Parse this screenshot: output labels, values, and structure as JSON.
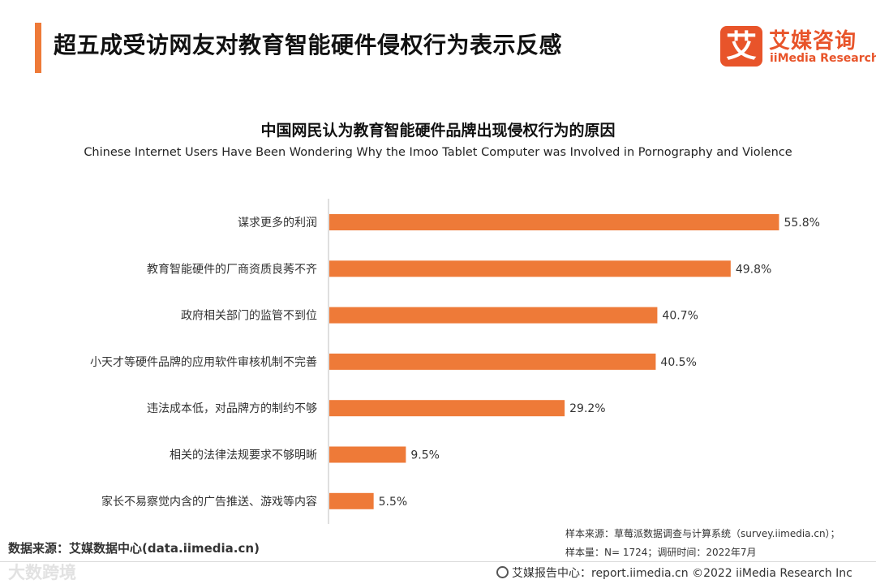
{
  "page": {
    "title": "超五成受访网友对教育智能硬件侵权行为表示反感"
  },
  "logo": {
    "mark": "艾",
    "name_cn": "艾媒咨询",
    "name_en": "iiMedia Research"
  },
  "chart_data": {
    "type": "bar",
    "orientation": "horizontal",
    "title": "中国网民认为教育智能硬件品牌出现侵权行为的原因",
    "subtitle": "Chinese Internet Users Have Been Wondering Why the Imoo Tablet Computer  was Involved in Pornography and Violence",
    "categories": [
      "谋求更多的利润",
      "教育智能硬件的厂商资质良莠不齐",
      "政府相关部门的监管不到位",
      "小天才等硬件品牌的应用软件审核机制不完善",
      "违法成本低，对品牌方的制约不够",
      "相关的法律法规要求不够明晰",
      "家长不易察觉内含的广告推送、游戏等内容"
    ],
    "values": [
      55.8,
      49.8,
      40.7,
      40.5,
      29.2,
      9.5,
      5.5
    ],
    "value_labels": [
      "55.8%",
      "49.8%",
      "40.7%",
      "40.5%",
      "29.2%",
      "9.5%",
      "5.5%"
    ],
    "unit": "%",
    "bar_color": "#ee7a38",
    "xlim": [
      0,
      60
    ],
    "grid": false,
    "legend": "none"
  },
  "source": {
    "left": "数据来源：艾媒数据中心(data.iimedia.cn)",
    "right_line1": "样本来源：草莓派数据调查与计算系统（survey.iimedia.cn）；",
    "right_line2": "样本量：N= 1724；调研时间：2022年7月"
  },
  "footer": {
    "watermark": "大数跨境",
    "report_center": "艾媒报告中心：report.iimedia.cn  ©2022  iiMedia Research  Inc"
  }
}
